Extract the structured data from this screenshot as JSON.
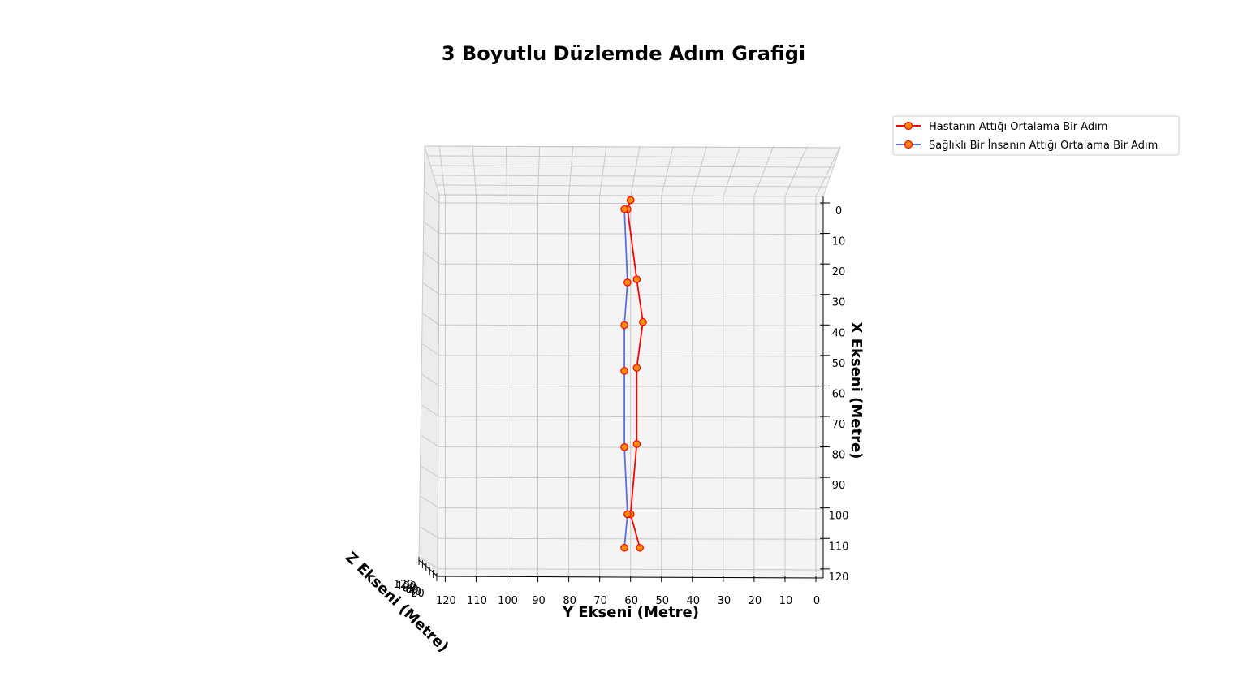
{
  "chart_data": {
    "type": "line",
    "title": "3 Boyutlu Düzlemde Adım Grafiği",
    "xlabel": "X Ekseni (Metre)",
    "ylabel": "Y Ekseni (Metre)",
    "zlabel": "Z Ekseni (Metre)",
    "x_ticks": [
      "0",
      "10",
      "20",
      "30",
      "40",
      "50",
      "60",
      "70",
      "80",
      "90",
      "100",
      "110",
      "120"
    ],
    "y_ticks": [
      "120",
      "110",
      "100",
      "90",
      "80",
      "70",
      "60",
      "50",
      "40",
      "30",
      "20",
      "10",
      "0"
    ],
    "z_ticks": [
      "120",
      "100",
      "80",
      "60",
      "40",
      "20"
    ],
    "xlim": [
      0,
      120
    ],
    "ylim": [
      120,
      0
    ],
    "zlim": [
      0,
      120
    ],
    "grid": true,
    "legend_position": "top-right",
    "colors": {
      "patient": "#ff0000",
      "healthy": "#5b6fe0",
      "marker_fill": "#ff8c00",
      "marker_edge": "#ff0000"
    },
    "series": [
      {
        "name": "Hastanın Attığı Ortalama Bir Adım",
        "points": [
          {
            "x": -2,
            "y": 60
          },
          {
            "x": 1,
            "y": 61
          },
          {
            "x": 24,
            "y": 58
          },
          {
            "x": 38,
            "y": 56
          },
          {
            "x": 53,
            "y": 58
          },
          {
            "x": 78,
            "y": 58
          },
          {
            "x": 101,
            "y": 60
          },
          {
            "x": 112,
            "y": 57
          }
        ]
      },
      {
        "name": "Sağlıklı Bir İnsanın Attığı Ortalama Bir Adım",
        "points": [
          {
            "x": 1,
            "y": 62
          },
          {
            "x": 25,
            "y": 61
          },
          {
            "x": 39,
            "y": 62
          },
          {
            "x": 54,
            "y": 62
          },
          {
            "x": 79,
            "y": 62
          },
          {
            "x": 101,
            "y": 61
          },
          {
            "x": 112,
            "y": 62
          }
        ]
      }
    ]
  }
}
